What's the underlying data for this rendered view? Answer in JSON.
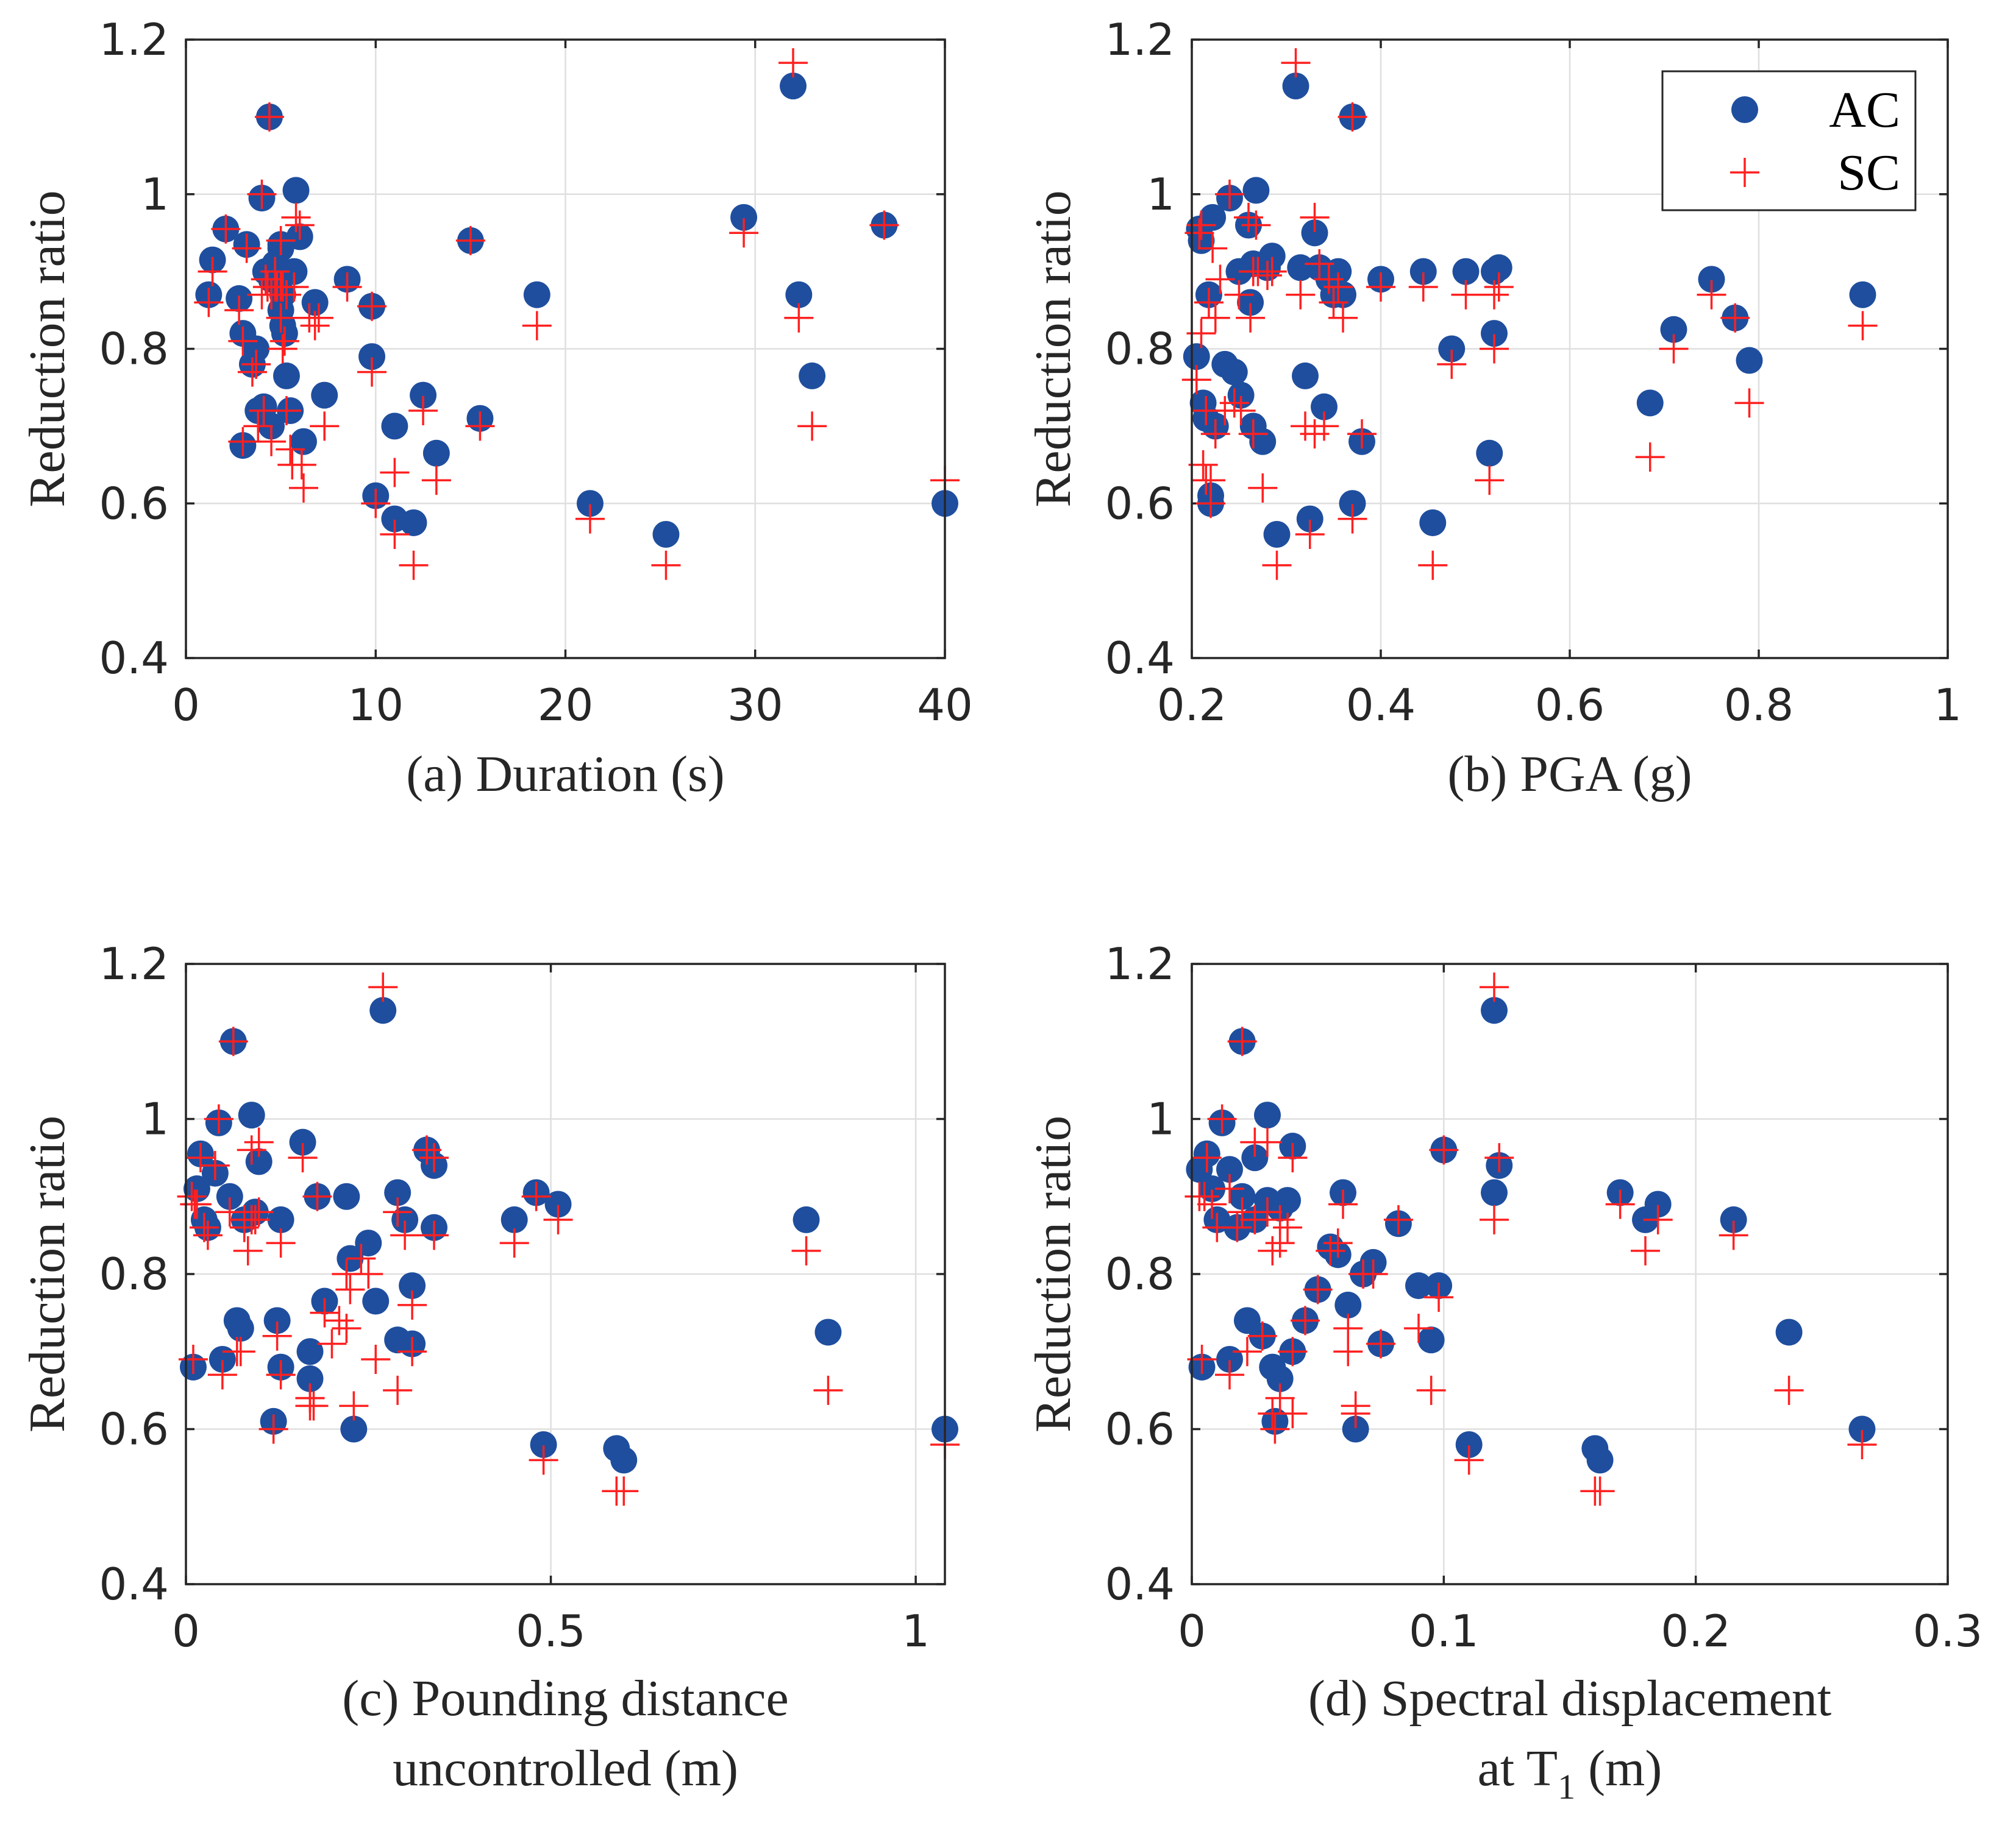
{
  "chart_data": [
    {
      "type": "scatter",
      "panel": "a",
      "xlabel": "(a) Duration (s)",
      "ylabel": "Reduction ratio",
      "xlim": [
        0,
        40
      ],
      "ylim": [
        0.4,
        1.2
      ],
      "xticks": [
        "0",
        "10",
        "20",
        "30",
        "40"
      ],
      "yticks": [
        "0.4",
        "0.6",
        "0.8",
        "1",
        "1.2"
      ],
      "grid": true,
      "legend": null,
      "series": [
        {
          "name": "AC",
          "x": [
            1.4,
            1.2,
            2.1,
            2.8,
            3.0,
            3.2,
            3.5,
            3.7,
            3.8,
            4.0,
            4.2,
            4.4,
            4.5,
            4.7,
            4.8,
            5.0,
            5.0,
            5.2,
            5.3,
            5.5,
            5.7,
            5.8,
            6.0,
            6.2,
            6.8,
            7.3,
            8.5,
            9.8,
            9.8,
            10.0,
            11.0,
            11.0,
            12.0,
            12.5,
            13.2,
            15.0,
            15.5,
            18.5,
            21.3,
            25.3,
            29.4,
            32.0,
            32.3,
            33.0,
            36.8,
            40.0,
            3.0,
            4.1,
            4.5,
            5.0,
            5.1,
            5.1
          ],
          "y": [
            0.915,
            0.87,
            0.955,
            0.865,
            0.82,
            0.935,
            0.78,
            0.8,
            0.72,
            0.995,
            0.9,
            1.1,
            0.7,
            0.91,
            0.89,
            0.935,
            0.85,
            0.82,
            0.765,
            0.72,
            0.9,
            1.005,
            0.945,
            0.68,
            0.86,
            0.74,
            0.89,
            0.79,
            0.855,
            0.61,
            0.7,
            0.58,
            0.575,
            0.74,
            0.665,
            0.94,
            0.71,
            0.87,
            0.6,
            0.56,
            0.97,
            1.14,
            0.87,
            0.765,
            0.96,
            0.6,
            0.675,
            0.725,
            0.89,
            0.93,
            0.83,
            0.87
          ]
        },
        {
          "name": "SC",
          "x": [
            1.4,
            1.2,
            2.1,
            2.8,
            3.0,
            3.2,
            3.5,
            3.7,
            3.8,
            4.0,
            4.2,
            4.4,
            4.5,
            4.7,
            4.8,
            5.0,
            5.0,
            5.2,
            5.3,
            5.5,
            5.7,
            5.8,
            6.0,
            6.2,
            6.8,
            7.3,
            8.5,
            9.8,
            9.8,
            10.0,
            11.0,
            11.0,
            12.0,
            12.5,
            13.2,
            15.0,
            15.5,
            18.5,
            21.3,
            25.3,
            29.4,
            32.0,
            32.3,
            33.0,
            36.8,
            40.0,
            3.0,
            4.1,
            4.5,
            5.0,
            5.1,
            5.1,
            4.0,
            4.3,
            4.7,
            5.3,
            5.6,
            6.1,
            6.5,
            7.0
          ],
          "y": [
            0.9,
            0.86,
            0.955,
            0.85,
            0.81,
            0.93,
            0.77,
            0.78,
            0.7,
            1.0,
            0.89,
            1.1,
            0.68,
            0.9,
            0.88,
            0.94,
            0.84,
            0.81,
            0.72,
            0.67,
            0.88,
            0.97,
            0.96,
            0.62,
            0.83,
            0.7,
            0.88,
            0.77,
            0.855,
            0.6,
            0.64,
            0.56,
            0.52,
            0.72,
            0.63,
            0.94,
            0.7,
            0.83,
            0.58,
            0.52,
            0.95,
            1.17,
            0.84,
            0.7,
            0.96,
            0.63,
            0.68,
            0.72,
            0.87,
            0.88,
            0.8,
            0.88,
            0.87,
            0.88,
            0.88,
            0.87,
            0.65,
            0.65,
            0.84,
            0.84
          ]
        }
      ]
    },
    {
      "type": "scatter",
      "panel": "b",
      "xlabel": "(b) PGA (g)",
      "ylabel": "Reduction ratio",
      "xlim": [
        0.2,
        1.0
      ],
      "ylim": [
        0.4,
        1.2
      ],
      "xticks": [
        "0.2",
        "0.4",
        "0.6",
        "0.8",
        "1"
      ],
      "yticks": [
        "0.4",
        "0.6",
        "0.8",
        "1",
        "1.2"
      ],
      "grid": true,
      "legend": {
        "position": "top-right",
        "entries": [
          "AC",
          "SC"
        ]
      },
      "series": [
        {
          "name": "AC",
          "x": [
            0.205,
            0.208,
            0.21,
            0.212,
            0.215,
            0.218,
            0.22,
            0.22,
            0.222,
            0.225,
            0.235,
            0.24,
            0.245,
            0.25,
            0.252,
            0.26,
            0.262,
            0.265,
            0.265,
            0.268,
            0.275,
            0.28,
            0.285,
            0.29,
            0.31,
            0.315,
            0.32,
            0.325,
            0.33,
            0.335,
            0.34,
            0.345,
            0.35,
            0.355,
            0.36,
            0.37,
            0.37,
            0.38,
            0.4,
            0.445,
            0.455,
            0.475,
            0.49,
            0.515,
            0.52,
            0.52,
            0.525,
            0.685,
            0.71,
            0.75,
            0.775,
            0.79,
            0.91
          ],
          "y": [
            0.79,
            0.955,
            0.94,
            0.73,
            0.71,
            0.87,
            0.61,
            0.6,
            0.97,
            0.7,
            0.78,
            0.995,
            0.77,
            0.9,
            0.74,
            0.96,
            0.86,
            0.91,
            0.7,
            1.005,
            0.68,
            0.905,
            0.92,
            0.56,
            1.14,
            0.905,
            0.765,
            0.58,
            0.95,
            0.905,
            0.725,
            0.89,
            0.87,
            0.9,
            0.87,
            1.1,
            0.6,
            0.68,
            0.89,
            0.9,
            0.575,
            0.8,
            0.9,
            0.665,
            0.82,
            0.9,
            0.905,
            0.73,
            0.825,
            0.89,
            0.84,
            0.785,
            0.87
          ]
        },
        {
          "name": "SC",
          "x": [
            0.205,
            0.208,
            0.21,
            0.212,
            0.215,
            0.218,
            0.22,
            0.22,
            0.222,
            0.225,
            0.235,
            0.24,
            0.245,
            0.25,
            0.252,
            0.26,
            0.262,
            0.265,
            0.265,
            0.268,
            0.275,
            0.28,
            0.285,
            0.29,
            0.31,
            0.315,
            0.32,
            0.325,
            0.33,
            0.335,
            0.34,
            0.345,
            0.35,
            0.355,
            0.36,
            0.37,
            0.37,
            0.38,
            0.4,
            0.445,
            0.455,
            0.475,
            0.49,
            0.515,
            0.52,
            0.52,
            0.525,
            0.685,
            0.71,
            0.75,
            0.775,
            0.79,
            0.91,
            0.21,
            0.215,
            0.225,
            0.23,
            0.27,
            0.33
          ],
          "y": [
            0.76,
            0.95,
            0.96,
            0.65,
            0.72,
            0.86,
            0.6,
            0.63,
            0.93,
            0.69,
            0.72,
            1.0,
            0.73,
            0.87,
            0.72,
            0.97,
            0.84,
            0.9,
            0.69,
            0.96,
            0.62,
            0.895,
            0.9,
            0.52,
            1.17,
            0.87,
            0.7,
            0.56,
            0.97,
            0.91,
            0.7,
            0.89,
            0.86,
            0.88,
            0.84,
            1.1,
            0.58,
            0.69,
            0.88,
            0.88,
            0.52,
            0.78,
            0.87,
            0.63,
            0.8,
            0.87,
            0.88,
            0.66,
            0.8,
            0.87,
            0.84,
            0.73,
            0.83,
            0.82,
            0.63,
            0.84,
            0.89,
            0.9,
            0.69
          ]
        }
      ]
    },
    {
      "type": "scatter",
      "panel": "c",
      "xlabel": "(c) Pounding distance",
      "xlabel_line2": "uncontrolled (m)",
      "ylabel": "Reduction ratio",
      "xlim": [
        0,
        1.04
      ],
      "ylim": [
        0.4,
        1.2
      ],
      "xticks": [
        "0",
        "0.5",
        "1"
      ],
      "yticks": [
        "0.4",
        "0.6",
        "0.8",
        "1",
        "1.2"
      ],
      "grid": true,
      "legend": null,
      "series": [
        {
          "name": "AC",
          "x": [
            0.01,
            0.015,
            0.02,
            0.025,
            0.03,
            0.04,
            0.045,
            0.05,
            0.06,
            0.065,
            0.07,
            0.075,
            0.08,
            0.09,
            0.095,
            0.1,
            0.12,
            0.125,
            0.13,
            0.13,
            0.16,
            0.17,
            0.17,
            0.18,
            0.19,
            0.22,
            0.225,
            0.23,
            0.25,
            0.26,
            0.27,
            0.29,
            0.29,
            0.3,
            0.31,
            0.31,
            0.33,
            0.34,
            0.34,
            0.45,
            0.48,
            0.49,
            0.51,
            0.59,
            0.6,
            0.85,
            0.88,
            1.04
          ],
          "y": [
            0.68,
            0.91,
            0.955,
            0.87,
            0.86,
            0.93,
            0.995,
            0.69,
            0.9,
            1.1,
            0.74,
            0.73,
            0.87,
            1.005,
            0.88,
            0.945,
            0.61,
            0.74,
            0.87,
            0.68,
            0.97,
            0.7,
            0.665,
            0.9,
            0.765,
            0.9,
            0.82,
            0.6,
            0.84,
            0.765,
            1.14,
            0.905,
            0.715,
            0.87,
            0.785,
            0.71,
            0.96,
            0.94,
            0.86,
            0.87,
            0.905,
            0.58,
            0.89,
            0.575,
            0.56,
            0.87,
            0.725,
            0.6
          ]
        },
        {
          "name": "SC",
          "x": [
            0.01,
            0.015,
            0.02,
            0.025,
            0.03,
            0.04,
            0.045,
            0.05,
            0.06,
            0.065,
            0.07,
            0.075,
            0.08,
            0.09,
            0.095,
            0.1,
            0.12,
            0.125,
            0.13,
            0.13,
            0.16,
            0.17,
            0.17,
            0.18,
            0.19,
            0.22,
            0.225,
            0.23,
            0.25,
            0.26,
            0.27,
            0.29,
            0.29,
            0.3,
            0.31,
            0.31,
            0.33,
            0.34,
            0.34,
            0.45,
            0.48,
            0.49,
            0.51,
            0.59,
            0.6,
            0.85,
            0.88,
            1.04,
            0.008,
            0.012,
            0.08,
            0.085,
            0.09,
            0.1,
            0.21,
            0.22,
            0.24,
            0.17,
            0.175,
            0.2
          ],
          "y": [
            0.69,
            0.89,
            0.95,
            0.86,
            0.85,
            0.94,
            1.0,
            0.67,
            0.88,
            1.1,
            0.7,
            0.7,
            0.87,
            0.96,
            0.87,
            0.97,
            0.6,
            0.72,
            0.84,
            0.67,
            0.95,
            0.64,
            0.63,
            0.9,
            0.75,
            0.73,
            0.78,
            0.63,
            0.8,
            0.69,
            1.17,
            0.88,
            0.65,
            0.85,
            0.76,
            0.7,
            0.96,
            0.95,
            0.85,
            0.84,
            0.9,
            0.56,
            0.87,
            0.52,
            0.52,
            0.83,
            0.65,
            0.58,
            0.9,
            0.89,
            0.86,
            0.83,
            0.87,
            0.88,
            0.74,
            0.8,
            0.82,
            0.64,
            0.63,
            0.71
          ]
        }
      ]
    },
    {
      "type": "scatter",
      "panel": "d",
      "xlabel": "(d) Spectral displacement",
      "xlabel_line2_prefix": "at T",
      "xlabel_line2_sub": "1",
      "xlabel_line2_suffix": " (m)",
      "ylabel": "Reduction ratio",
      "xlim": [
        0,
        0.3
      ],
      "ylim": [
        0.4,
        1.2
      ],
      "xticks": [
        "0",
        "0.1",
        "0.2",
        "0.3"
      ],
      "yticks": [
        "0.4",
        "0.6",
        "0.8",
        "1",
        "1.2"
      ],
      "grid": true,
      "legend": null,
      "series": [
        {
          "name": "AC",
          "x": [
            0.003,
            0.004,
            0.006,
            0.008,
            0.01,
            0.012,
            0.015,
            0.015,
            0.018,
            0.02,
            0.02,
            0.022,
            0.025,
            0.025,
            0.028,
            0.03,
            0.03,
            0.032,
            0.033,
            0.035,
            0.035,
            0.038,
            0.04,
            0.04,
            0.045,
            0.05,
            0.055,
            0.058,
            0.06,
            0.062,
            0.065,
            0.068,
            0.072,
            0.075,
            0.082,
            0.09,
            0.095,
            0.098,
            0.1,
            0.11,
            0.12,
            0.12,
            0.122,
            0.16,
            0.162,
            0.17,
            0.18,
            0.185,
            0.215,
            0.237,
            0.266
          ],
          "y": [
            0.935,
            0.68,
            0.955,
            0.91,
            0.87,
            0.995,
            0.935,
            0.69,
            0.86,
            1.1,
            0.9,
            0.74,
            0.87,
            0.95,
            0.72,
            1.005,
            0.895,
            0.68,
            0.61,
            0.885,
            0.665,
            0.895,
            0.965,
            0.7,
            0.74,
            0.78,
            0.835,
            0.825,
            0.905,
            0.76,
            0.6,
            0.8,
            0.815,
            0.71,
            0.865,
            0.785,
            0.715,
            0.785,
            0.96,
            0.58,
            1.14,
            0.905,
            0.94,
            0.575,
            0.56,
            0.905,
            0.87,
            0.89,
            0.87,
            0.725,
            0.6
          ]
        },
        {
          "name": "SC",
          "x": [
            0.003,
            0.004,
            0.006,
            0.008,
            0.01,
            0.012,
            0.015,
            0.015,
            0.018,
            0.02,
            0.02,
            0.022,
            0.025,
            0.025,
            0.028,
            0.03,
            0.03,
            0.032,
            0.033,
            0.035,
            0.035,
            0.038,
            0.04,
            0.04,
            0.045,
            0.05,
            0.055,
            0.058,
            0.06,
            0.062,
            0.065,
            0.068,
            0.072,
            0.075,
            0.082,
            0.09,
            0.095,
            0.098,
            0.1,
            0.11,
            0.12,
            0.12,
            0.122,
            0.16,
            0.162,
            0.17,
            0.18,
            0.185,
            0.215,
            0.237,
            0.266,
            0.005,
            0.032,
            0.035,
            0.062,
            0.065,
            0.04
          ],
          "y": [
            0.9,
            0.69,
            0.95,
            0.89,
            0.86,
            1.0,
            0.91,
            0.67,
            0.86,
            1.1,
            0.88,
            0.7,
            0.87,
            0.97,
            0.72,
            0.97,
            0.88,
            0.62,
            0.6,
            0.87,
            0.64,
            0.86,
            0.95,
            0.7,
            0.74,
            0.78,
            0.83,
            0.84,
            0.89,
            0.7,
            0.63,
            0.8,
            0.8,
            0.71,
            0.87,
            0.73,
            0.65,
            0.77,
            0.96,
            0.56,
            1.17,
            0.87,
            0.95,
            0.52,
            0.52,
            0.89,
            0.83,
            0.87,
            0.85,
            0.65,
            0.58,
            0.9,
            0.83,
            0.84,
            0.73,
            0.62,
            0.62
          ]
        }
      ]
    }
  ]
}
